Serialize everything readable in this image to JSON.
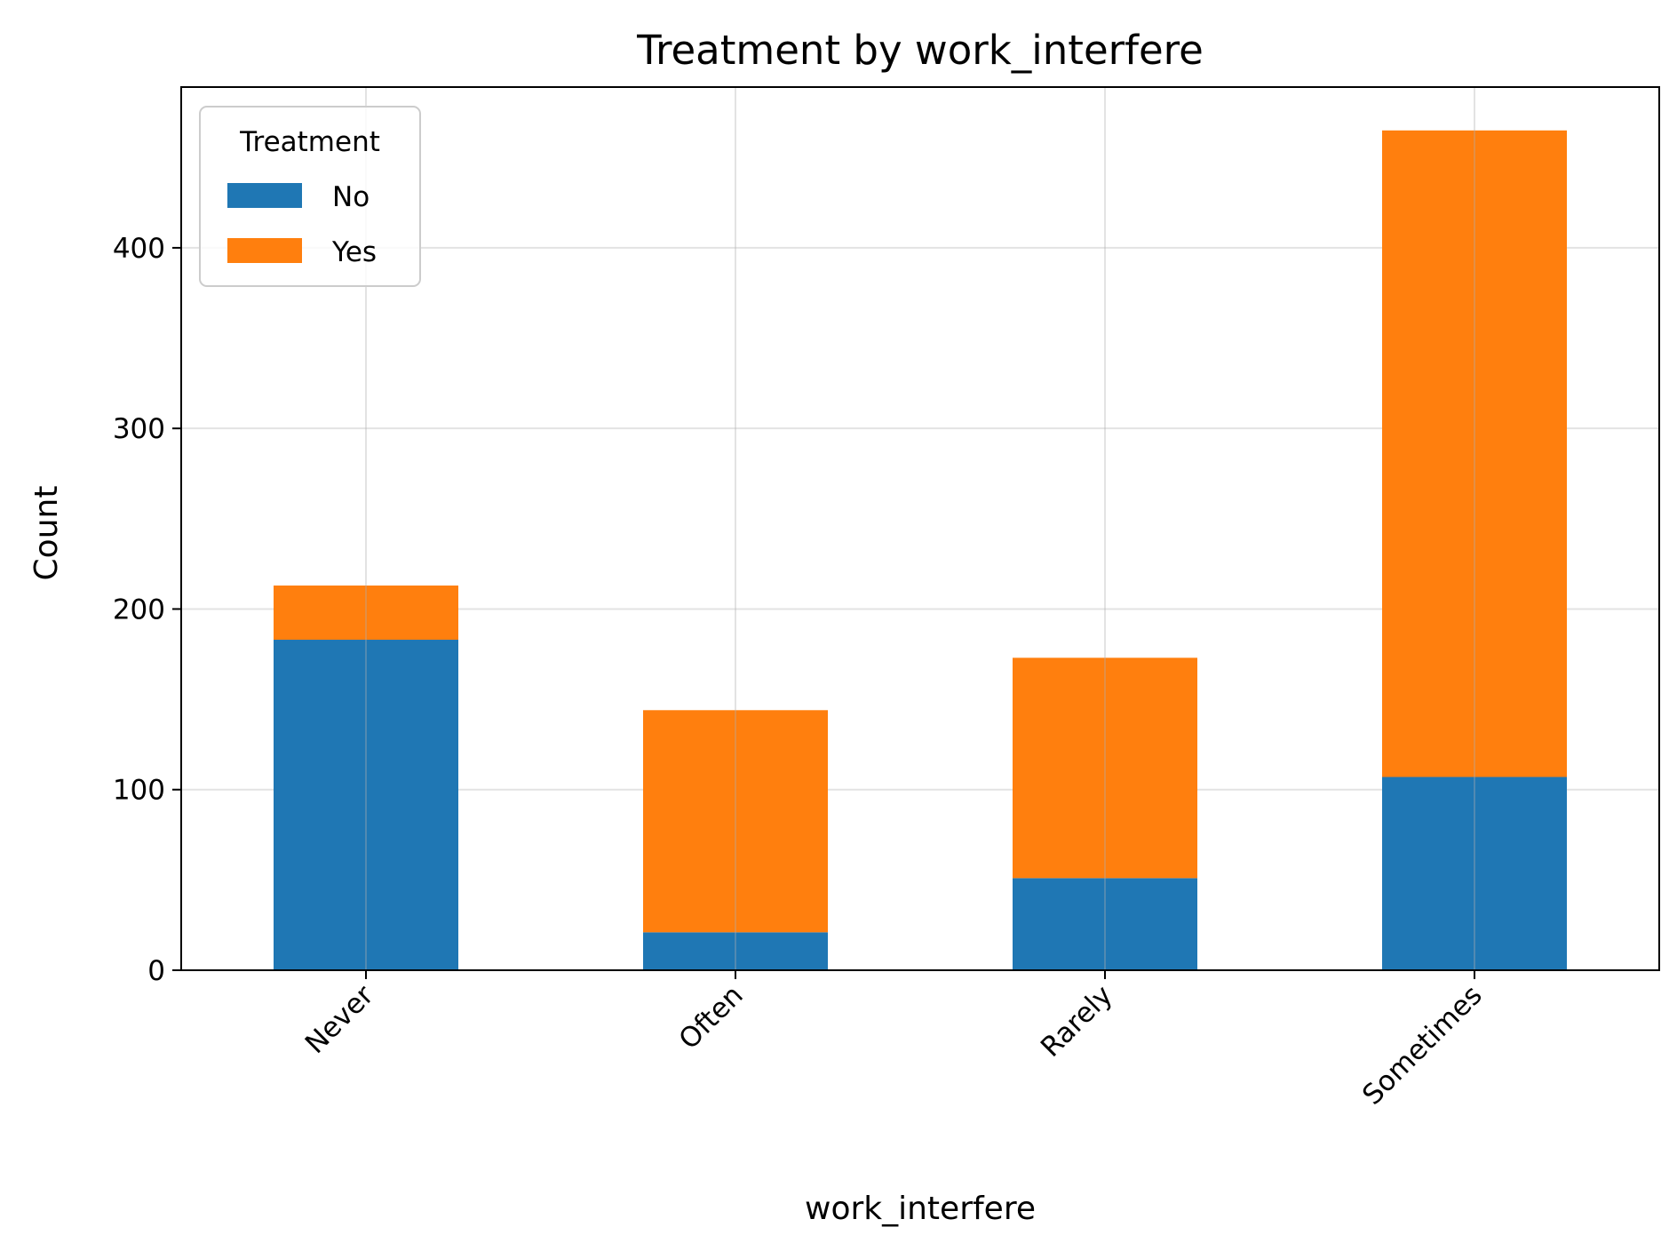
{
  "chart_data": {
    "type": "bar",
    "stacked": true,
    "title": "Treatment by work_interfere",
    "xlabel": "work_interfere",
    "ylabel": "Count",
    "categories": [
      "Never",
      "Often",
      "Rarely",
      "Sometimes"
    ],
    "series": [
      {
        "name": "No",
        "color": "#1f77b4",
        "values": [
          183,
          21,
          51,
          107
        ]
      },
      {
        "name": "Yes",
        "color": "#ff7f0e",
        "values": [
          30,
          123,
          122,
          358
        ]
      }
    ],
    "ylim": [
      0,
      489
    ],
    "yticks": [
      0,
      100,
      200,
      300,
      400
    ],
    "grid": true,
    "legend": {
      "title": "Treatment",
      "placement": "top-left"
    }
  }
}
